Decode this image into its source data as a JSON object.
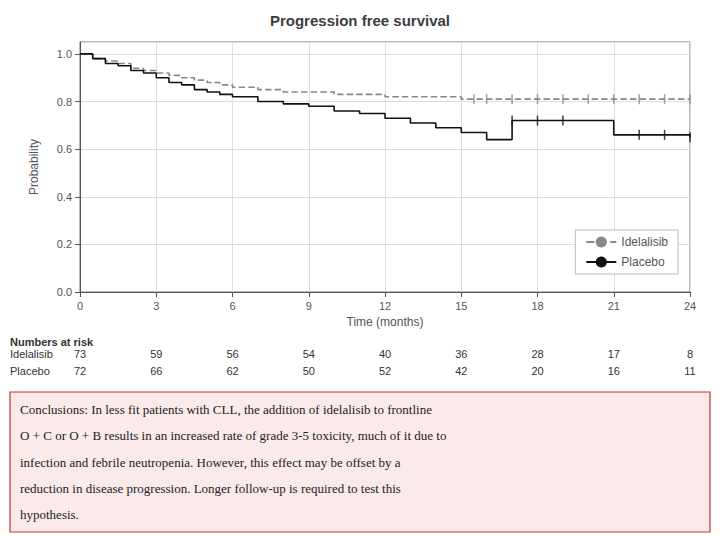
{
  "chart_data": {
    "type": "line",
    "title": "Progression free survival",
    "xlabel": "Time (months)",
    "ylabel": "Probability",
    "xlim": [
      0,
      24
    ],
    "ylim": [
      0.0,
      1.05
    ],
    "xticks": [
      0,
      3,
      6,
      9,
      12,
      15,
      18,
      21,
      24
    ],
    "yticks": [
      {
        "value": 0.0,
        "label": "0.0"
      },
      {
        "value": 0.2,
        "label": "0.2"
      },
      {
        "value": 0.4,
        "label": "0.4"
      },
      {
        "value": 0.6,
        "label": "0.6"
      },
      {
        "value": 0.8,
        "label": "0.8"
      },
      {
        "value": 1.0,
        "label": "1.0"
      }
    ],
    "grid": true,
    "legend": "lower right",
    "series": [
      {
        "name": "Idelalisib",
        "color": "#888888",
        "line_style": "dashed",
        "x": [
          0,
          0.5,
          1,
          1.5,
          2,
          2.5,
          3,
          3.5,
          4,
          4.5,
          5,
          5.5,
          6,
          7,
          8,
          9,
          10,
          11,
          12,
          13,
          14,
          15,
          15.5,
          16,
          17,
          18,
          19,
          20,
          21,
          22,
          23,
          24
        ],
        "values": [
          1.0,
          0.98,
          0.97,
          0.96,
          0.94,
          0.93,
          0.92,
          0.91,
          0.9,
          0.89,
          0.88,
          0.87,
          0.86,
          0.85,
          0.84,
          0.84,
          0.83,
          0.83,
          0.82,
          0.82,
          0.82,
          0.81,
          0.81,
          0.81,
          0.81,
          0.81,
          0.81,
          0.81,
          0.81,
          0.81,
          0.81,
          0.81
        ],
        "censor_x": [
          15.5,
          16,
          17,
          18,
          19,
          20,
          21,
          22,
          23,
          24
        ],
        "censor_y": [
          0.81,
          0.81,
          0.81,
          0.81,
          0.81,
          0.81,
          0.81,
          0.81,
          0.81,
          0.81
        ]
      },
      {
        "name": "Placebo",
        "color": "#111111",
        "line_style": "solid",
        "x": [
          0,
          0.5,
          1,
          1.5,
          2,
          2.5,
          3,
          3.5,
          4,
          4.5,
          5,
          5.5,
          6,
          7,
          8,
          9,
          10,
          11,
          12,
          13,
          14,
          15,
          16,
          17,
          18,
          19,
          20,
          21,
          22,
          23,
          24
        ],
        "values": [
          1.0,
          0.98,
          0.96,
          0.95,
          0.93,
          0.92,
          0.9,
          0.88,
          0.87,
          0.85,
          0.84,
          0.83,
          0.82,
          0.8,
          0.79,
          0.78,
          0.76,
          0.75,
          0.73,
          0.71,
          0.69,
          0.67,
          0.64,
          0.72,
          0.72,
          0.72,
          0.72,
          0.66,
          0.66,
          0.66,
          0.65
        ],
        "censor_x": [
          17,
          18,
          19,
          22,
          23,
          24
        ],
        "censor_y": [
          0.72,
          0.72,
          0.72,
          0.66,
          0.66,
          0.65
        ]
      }
    ],
    "risk_table": {
      "title": "Numbers at risk",
      "times": [
        0,
        3,
        6,
        9,
        12,
        15,
        18,
        21,
        24
      ],
      "rows": [
        {
          "name": "Idelalisib",
          "values": [
            73,
            59,
            56,
            54,
            40,
            36,
            28,
            17,
            8
          ]
        },
        {
          "name": "Placebo",
          "values": [
            72,
            66,
            62,
            50,
            52,
            42,
            20,
            16,
            11
          ]
        }
      ]
    },
    "annotations": [
      "Conclusions: In less fit patients with CLL, the addition of idelalisib to frontline",
      "O + C or O + B results in an increased rate of grade 3-5 toxicity, much of it due to",
      "infection and febrile neutropenia. However, this effect may be offset by a",
      "reduction in disease progression. Longer follow-up is required to test this",
      "hypothesis."
    ]
  }
}
